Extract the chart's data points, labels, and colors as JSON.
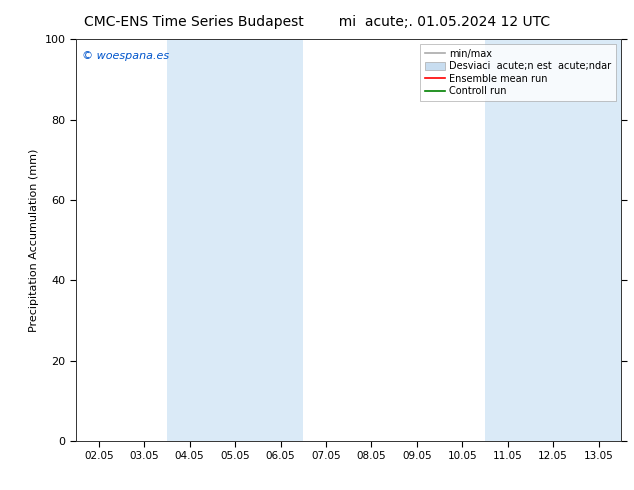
{
  "title1": "CMC-ENS Time Series Budapest",
  "title2": "mi  acute;. 01.05.2024 12 UTC",
  "ylabel": "Precipitation Accumulation (mm)",
  "ylim": [
    0,
    100
  ],
  "yticks": [
    0,
    20,
    40,
    60,
    80,
    100
  ],
  "x_labels": [
    "02.05",
    "03.05",
    "04.05",
    "05.05",
    "06.05",
    "07.05",
    "08.05",
    "09.05",
    "10.05",
    "11.05",
    "12.05",
    "13.05"
  ],
  "shaded_regions": [
    {
      "xmin": 2,
      "xmax": 4
    },
    {
      "xmin": 9,
      "xmax": 11
    }
  ],
  "shaded_color": "#daeaf7",
  "watermark": "© woespana.es",
  "watermark_color": "#0055cc",
  "legend_labels": [
    "min/max",
    "Desviaci  acute;n est  acute;ndar",
    "Ensemble mean run",
    "Controll run"
  ],
  "legend_colors": [
    "#aaaaaa",
    "#c8ddf0",
    "red",
    "green"
  ],
  "background_color": "#ffffff",
  "figwidth": 6.34,
  "figheight": 4.9,
  "dpi": 100
}
